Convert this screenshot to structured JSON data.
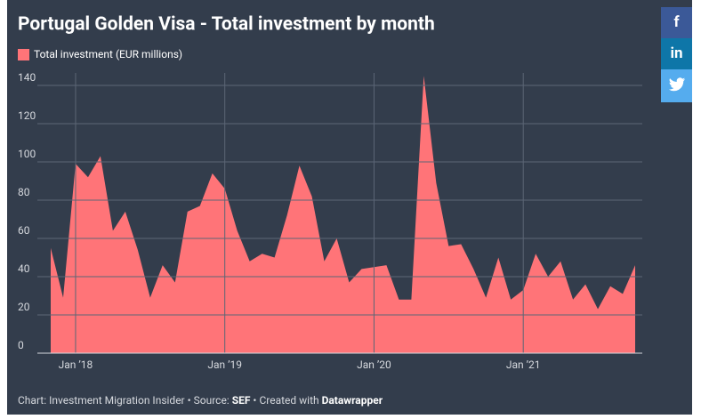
{
  "chart_data": {
    "type": "area",
    "title": "Portugal Golden Visa - Total investment by month",
    "x": [
      "2017-11",
      "2017-12",
      "2018-01",
      "2018-02",
      "2018-03",
      "2018-04",
      "2018-05",
      "2018-06",
      "2018-07",
      "2018-08",
      "2018-09",
      "2018-10",
      "2018-11",
      "2018-12",
      "2019-01",
      "2019-02",
      "2019-03",
      "2019-04",
      "2019-05",
      "2019-06",
      "2019-07",
      "2019-08",
      "2019-09",
      "2019-10",
      "2019-11",
      "2019-12",
      "2020-01",
      "2020-02",
      "2020-03",
      "2020-04",
      "2020-05",
      "2020-06",
      "2020-07",
      "2020-08",
      "2020-09",
      "2020-10",
      "2020-11",
      "2020-12",
      "2021-01",
      "2021-02",
      "2021-03",
      "2021-04",
      "2021-05",
      "2021-06",
      "2021-07",
      "2021-08",
      "2021-09",
      "2021-10"
    ],
    "series": [
      {
        "name": "Total investment (EUR millions)",
        "color": "#ff7478",
        "values": [
          55,
          29,
          99,
          92,
          103,
          64,
          74,
          54,
          29,
          46,
          37,
          74,
          77,
          94,
          86,
          64,
          48,
          52,
          50,
          72,
          98,
          82,
          48,
          60,
          37,
          44,
          45,
          46,
          28,
          28,
          145,
          89,
          56,
          57,
          44,
          29,
          50,
          28,
          33,
          52,
          40,
          48,
          28,
          36,
          23,
          35,
          31,
          46
        ]
      }
    ],
    "xlim": [
      "2017-11",
      "2021-10"
    ],
    "xticks": [
      {
        "value": "2018-01",
        "label": "Jan ’18"
      },
      {
        "value": "2019-01",
        "label": "Jan ’19"
      },
      {
        "value": "2020-01",
        "label": "Jan ’20"
      },
      {
        "value": "2021-01",
        "label": "Jan ’21"
      }
    ],
    "ylim": [
      0,
      145
    ],
    "yticks": [
      0,
      20,
      40,
      60,
      80,
      100,
      120,
      140
    ],
    "grid": true,
    "legend": "top-left"
  },
  "footer": {
    "prefix": "Chart: Investment Migration Insider • Source: ",
    "source": "SEF",
    "middle": " • Created with ",
    "tool": "Datawrapper"
  },
  "share": [
    "f",
    "in"
  ]
}
